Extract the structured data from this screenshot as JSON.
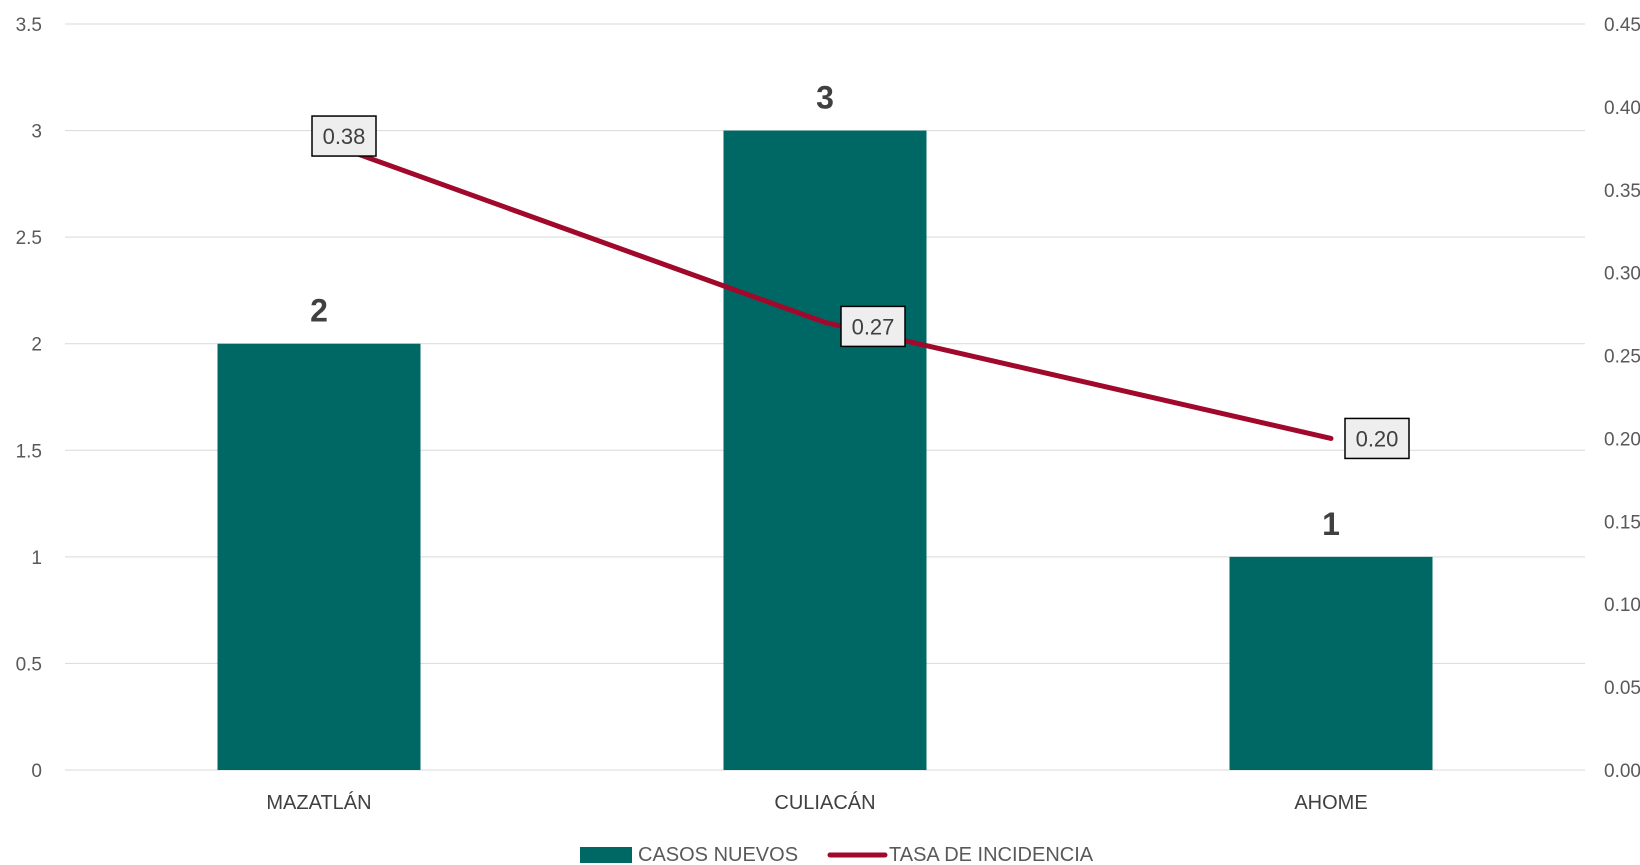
{
  "chart_data": {
    "type": "bar",
    "categories": [
      "MAZATLÁN",
      "CULIACÁN",
      "AHOME"
    ],
    "series": [
      {
        "name": "CASOS NUEVOS",
        "kind": "bar",
        "axis": "left",
        "values": [
          2,
          3,
          1
        ],
        "labels": [
          "2",
          "3",
          "1"
        ],
        "color": "#006864"
      },
      {
        "name": "TASA DE INCIDENCIA",
        "kind": "line",
        "axis": "right",
        "values": [
          0.38,
          0.27,
          0.2
        ],
        "labels": [
          "0.38",
          "0.27",
          "0.20"
        ],
        "color": "#A0092B"
      }
    ],
    "y_left": {
      "min": 0,
      "max": 3.5,
      "ticks": [
        "0",
        "0.5",
        "1",
        "1.5",
        "2",
        "2.5",
        "3",
        "3.5"
      ]
    },
    "y_right": {
      "min": 0,
      "max": 0.45,
      "ticks": [
        "0.00",
        "0.05",
        "0.10",
        "0.15",
        "0.20",
        "0.25",
        "0.30",
        "0.35",
        "0.40",
        "0.45"
      ]
    },
    "grid": true,
    "legend": "bottom"
  }
}
